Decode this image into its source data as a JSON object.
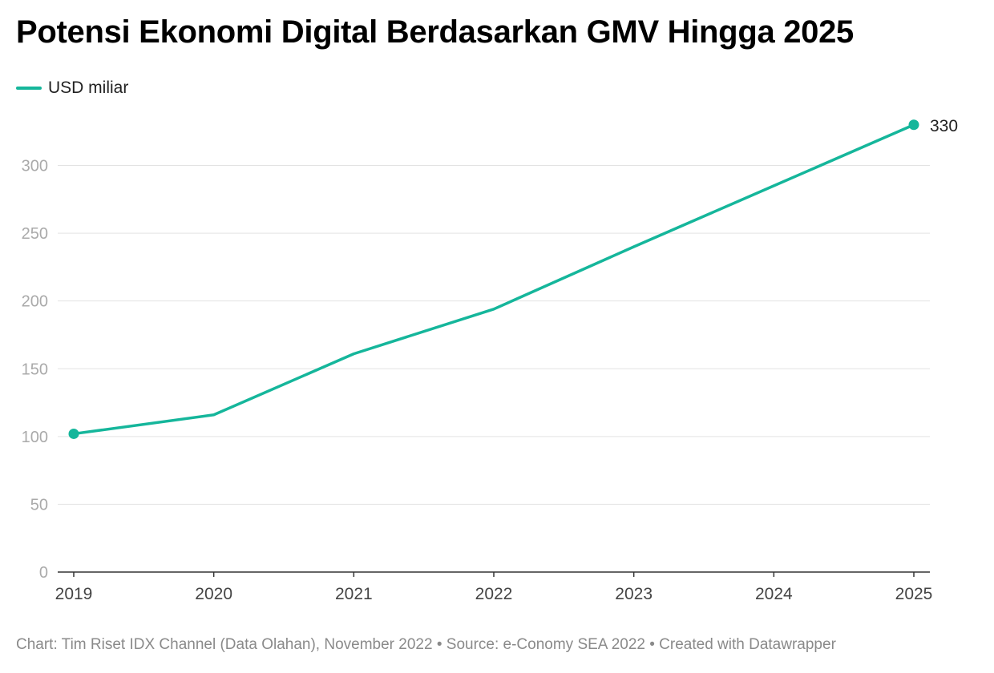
{
  "chart_data": {
    "type": "line",
    "title": "Potensi Ekonomi Digital Berdasarkan GMV Hingga 2025",
    "legend": [
      {
        "label": "USD miliar",
        "color": "#15b69b"
      }
    ],
    "x": [
      2019,
      2020,
      2021,
      2022,
      2023,
      2024,
      2025
    ],
    "x_tick_labels": [
      "2019",
      "2020",
      "2021",
      "2022",
      "2023",
      "2024",
      "2025"
    ],
    "series": [
      {
        "name": "USD miliar",
        "color": "#15b69b",
        "values": [
          102,
          116,
          161,
          194,
          240,
          285,
          330
        ]
      }
    ],
    "y_ticks": [
      0,
      50,
      100,
      150,
      200,
      250,
      300
    ],
    "ylim": [
      0,
      330
    ],
    "grid": true,
    "markers_at": [
      0,
      6
    ],
    "end_label": "330",
    "xlabel": "",
    "ylabel": ""
  },
  "footer": {
    "text": "Chart: Tim Riset IDX Channel (Data Olahan), November 2022 • Source: e-Conomy SEA 2022 • Created with Datawrapper"
  }
}
